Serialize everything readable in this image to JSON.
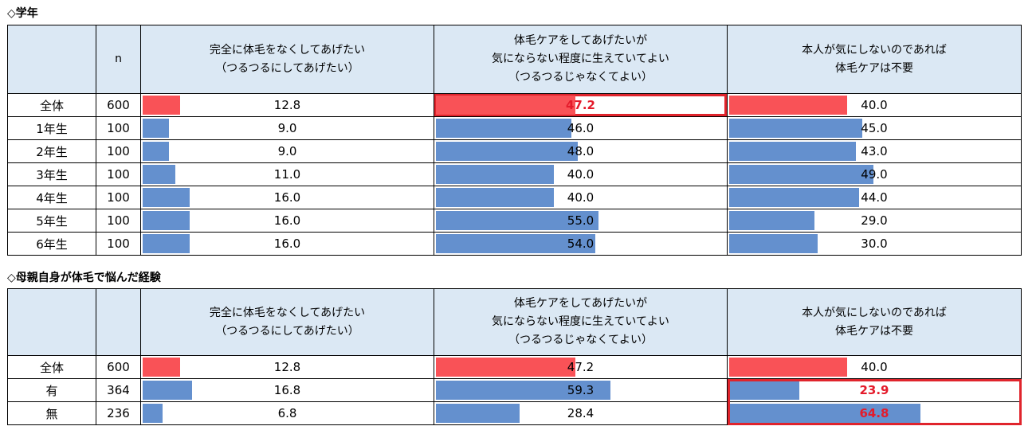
{
  "sections": [
    {
      "title": "◇学年",
      "headers": {
        "n": "n",
        "columns": [
          [
            "完全に体毛をなくしてあげたい",
            "（つるつるにしてあげたい）"
          ],
          [
            "体毛ケアをしてあげたいが",
            "気にならない程度に生えていてよい",
            "（つるつるじゃなくてよい）"
          ],
          [
            "本人が気にしないのであれば",
            "体毛ケアは不要"
          ]
        ]
      },
      "rows": [
        {
          "label": "全体",
          "n": "600",
          "cells": [
            "12.8",
            "47.2",
            "40.0"
          ]
        },
        {
          "label": "1年生",
          "n": "100",
          "cells": [
            "9.0",
            "46.0",
            "45.0"
          ]
        },
        {
          "label": "2年生",
          "n": "100",
          "cells": [
            "9.0",
            "48.0",
            "43.0"
          ]
        },
        {
          "label": "3年生",
          "n": "100",
          "cells": [
            "11.0",
            "40.0",
            "49.0"
          ]
        },
        {
          "label": "4年生",
          "n": "100",
          "cells": [
            "16.0",
            "40.0",
            "44.0"
          ]
        },
        {
          "label": "5年生",
          "n": "100",
          "cells": [
            "16.0",
            "55.0",
            "29.0"
          ]
        },
        {
          "label": "6年生",
          "n": "100",
          "cells": [
            "16.0",
            "54.0",
            "30.0"
          ]
        }
      ]
    },
    {
      "title": "◇母親自身が体毛で悩んだ経験",
      "headers": {
        "n": "",
        "columns": [
          [
            "完全に体毛をなくしてあげたい",
            "（つるつるにしてあげたい）"
          ],
          [
            "体毛ケアをしてあげたいが",
            "気にならない程度に生えていてよい",
            "（つるつるじゃなくてよい）"
          ],
          [
            "本人が気にしないのであれば",
            "体毛ケアは不要"
          ]
        ]
      },
      "rows": [
        {
          "label": "全体",
          "n": "600",
          "cells": [
            "12.8",
            "47.2",
            "40.0"
          ]
        },
        {
          "label": "有",
          "n": "364",
          "cells": [
            "16.8",
            "59.3",
            "23.9"
          ]
        },
        {
          "label": "無",
          "n": "236",
          "cells": [
            "6.8",
            "28.4",
            "64.8"
          ]
        }
      ]
    }
  ],
  "chart_data": [
    {
      "type": "bar",
      "orientation": "horizontal",
      "title": "◇学年",
      "unit": "%",
      "categories": [
        "全体",
        "1年生",
        "2年生",
        "3年生",
        "4年生",
        "5年生",
        "6年生"
      ],
      "n": [
        600,
        100,
        100,
        100,
        100,
        100,
        100
      ],
      "series": [
        {
          "name": "完全に体毛をなくしてあげたい（つるつるにしてあげたい）",
          "values": [
            12.8,
            9.0,
            9.0,
            11.0,
            16.0,
            16.0,
            16.0
          ]
        },
        {
          "name": "体毛ケアをしてあげたいが気にならない程度に生えていてよい（つるつるじゃなくてよい）",
          "values": [
            47.2,
            46.0,
            48.0,
            40.0,
            40.0,
            55.0,
            54.0
          ]
        },
        {
          "name": "本人が気にしないのであれば体毛ケアは不要",
          "values": [
            40.0,
            45.0,
            43.0,
            49.0,
            44.0,
            29.0,
            30.0
          ]
        }
      ],
      "xlim": [
        0,
        100
      ],
      "highlight": [
        {
          "row": 0,
          "col": 1
        }
      ],
      "colors": {
        "total": "#f95257",
        "rows": "#6490ce",
        "highlight": "#e0242c",
        "header_bg": "#dbe8f4"
      }
    },
    {
      "type": "bar",
      "orientation": "horizontal",
      "title": "◇母親自身が体毛で悩んだ経験",
      "unit": "%",
      "categories": [
        "全体",
        "有",
        "無"
      ],
      "n": [
        600,
        364,
        236
      ],
      "series": [
        {
          "name": "完全に体毛をなくしてあげたい（つるつるにしてあげたい）",
          "values": [
            12.8,
            16.8,
            6.8
          ]
        },
        {
          "name": "体毛ケアをしてあげたいが気にならない程度に生えていてよい（つるつるじゃなくてよい）",
          "values": [
            47.2,
            59.3,
            28.4
          ]
        },
        {
          "name": "本人が気にしないのであれば体毛ケアは不要",
          "values": [
            40.0,
            23.9,
            64.8
          ]
        }
      ],
      "xlim": [
        0,
        100
      ],
      "highlight": [
        {
          "row": 1,
          "col": 2
        },
        {
          "row": 2,
          "col": 2
        }
      ],
      "colors": {
        "total": "#f95257",
        "rows": "#6490ce",
        "highlight": "#e0242c",
        "header_bg": "#dbe8f4"
      }
    }
  ]
}
